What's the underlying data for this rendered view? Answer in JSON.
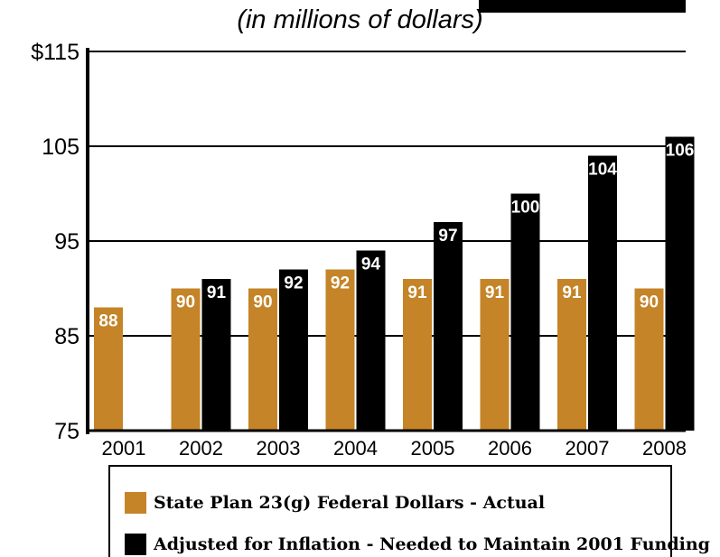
{
  "chart_data": {
    "type": "bar",
    "title": "",
    "subtitle": "(in millions of dollars)",
    "xlabel": "",
    "ylabel": "",
    "categories": [
      "2001",
      "2002",
      "2003",
      "2004",
      "2005",
      "2006",
      "2007",
      "2008"
    ],
    "series": [
      {
        "name": "State Plan 23(g) Federal Dollars - Actual",
        "color": "#C48427",
        "values": [
          88,
          90,
          90,
          92,
          91,
          91,
          91,
          90
        ]
      },
      {
        "name": "Adjusted for Inflation - Needed to Maintain 2001 Funding",
        "color": "#000000",
        "values": [
          null,
          91,
          92,
          94,
          97,
          100,
          104,
          106
        ]
      }
    ],
    "ylim": [
      75,
      115
    ],
    "yticks": [
      75,
      85,
      95,
      105,
      115
    ],
    "ytick_labels": [
      "75",
      "85",
      "95",
      "105",
      "$115"
    ],
    "grid": true,
    "legend_position": "bottom"
  }
}
